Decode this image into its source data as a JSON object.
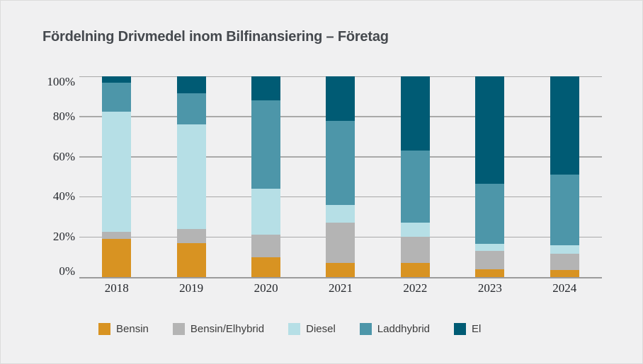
{
  "title": "Fördelning Drivmedel inom Bilfinansiering – Företag",
  "colors": {
    "background": "#f0f0f1",
    "title_text": "#45494e",
    "gridline": "#a9a9a9",
    "axis_line": "#9b9b9b",
    "tick_text": "#24272c",
    "legend_text": "#3c3c3c"
  },
  "chart_data": {
    "type": "bar",
    "stacked": true,
    "unit": "%",
    "title": "Fördelning Drivmedel inom Bilfinansiering – Företag",
    "categories": [
      "2018",
      "2019",
      "2020",
      "2021",
      "2022",
      "2023",
      "2024"
    ],
    "series": [
      {
        "name": "Bensin",
        "color": "#d89322",
        "values": [
          19,
          17,
          10,
          7,
          7,
          4,
          3.5
        ]
      },
      {
        "name": "Bensin/Elhybrid",
        "color": "#b4b4b4",
        "values": [
          3.5,
          7,
          11,
          20,
          13,
          9,
          8
        ]
      },
      {
        "name": "Diesel",
        "color": "#b6dfe6",
        "values": [
          60,
          52,
          23,
          9,
          7,
          3.5,
          4.5
        ]
      },
      {
        "name": "Laddhybrid",
        "color": "#4d96a9",
        "values": [
          14.5,
          15.5,
          44,
          42,
          36,
          30,
          35
        ]
      },
      {
        "name": "El",
        "color": "#005b74",
        "values": [
          3,
          8.5,
          12,
          22,
          37,
          53.5,
          49
        ]
      }
    ],
    "y_axis": {
      "tick_labels": [
        "0%",
        "20%",
        "40%",
        "60%",
        "80%",
        "100%"
      ],
      "tick_values": [
        0,
        20,
        40,
        60,
        80,
        100
      ],
      "min": 0,
      "max": 100
    },
    "xlabel": "",
    "ylabel": "",
    "grid": true,
    "legend_position": "bottom"
  }
}
